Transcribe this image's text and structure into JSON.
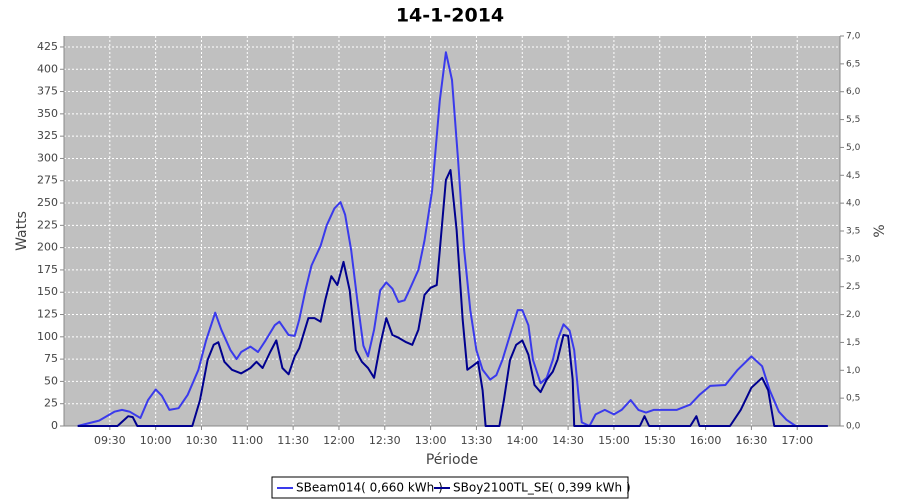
{
  "chart_data": {
    "type": "line",
    "title": "14-1-2014",
    "y_label": "Watts",
    "x_label": "Période",
    "y2_label": "%",
    "xlim": [
      540,
      1048
    ],
    "xticks": [
      {
        "value": 570,
        "label": "09:30"
      },
      {
        "value": 600,
        "label": "10:00"
      },
      {
        "value": 630,
        "label": "10:30"
      },
      {
        "value": 660,
        "label": "11:00"
      },
      {
        "value": 690,
        "label": "11:30"
      },
      {
        "value": 720,
        "label": "12:00"
      },
      {
        "value": 750,
        "label": "12:30"
      },
      {
        "value": 780,
        "label": "13:00"
      },
      {
        "value": 810,
        "label": "13:30"
      },
      {
        "value": 840,
        "label": "14:00"
      },
      {
        "value": 870,
        "label": "14:30"
      },
      {
        "value": 900,
        "label": "15:00"
      },
      {
        "value": 930,
        "label": "15:30"
      },
      {
        "value": 960,
        "label": "16:00"
      },
      {
        "value": 990,
        "label": "16:30"
      },
      {
        "value": 1020,
        "label": "17:00"
      }
    ],
    "ylim": [
      0,
      437.3
    ],
    "yticks": [
      0,
      25,
      50,
      75,
      100,
      125,
      150,
      175,
      200,
      225,
      250,
      275,
      300,
      325,
      350,
      375,
      400,
      425
    ],
    "y2lim": [
      0,
      7
    ],
    "y2ticks": [
      {
        "value": 0,
        "label": "0,0"
      },
      {
        "value": 0.5,
        "label": "0,5"
      },
      {
        "value": 1,
        "label": "1,0"
      },
      {
        "value": 1.5,
        "label": "1,5"
      },
      {
        "value": 2,
        "label": "2,0"
      },
      {
        "value": 2.5,
        "label": "2,5"
      },
      {
        "value": 3,
        "label": "3,0"
      },
      {
        "value": 3.5,
        "label": "3,5"
      },
      {
        "value": 4,
        "label": "4,0"
      },
      {
        "value": 4.5,
        "label": "4,5"
      },
      {
        "value": 5,
        "label": "5,0"
      },
      {
        "value": 5.5,
        "label": "5,5"
      },
      {
        "value": 6,
        "label": "6,0"
      },
      {
        "value": 6.5,
        "label": "6,5"
      },
      {
        "value": 7,
        "label": "7,0"
      }
    ],
    "grid": true,
    "series": [
      {
        "name": "SBeam014( 0,660 kWh )",
        "color": "#3a3aec",
        "x": [
          549,
          563,
          573,
          578,
          583,
          590,
          595,
          600,
          604,
          609,
          615,
          621,
          628,
          633,
          639,
          643,
          649,
          653,
          656,
          662,
          667,
          672,
          678,
          681,
          687,
          691,
          694,
          698,
          702,
          708,
          712,
          717,
          721,
          724,
          728,
          732,
          736,
          739,
          743,
          747,
          751,
          755,
          759,
          763,
          766,
          772,
          776,
          781,
          786,
          790,
          794,
          798,
          802,
          806,
          810,
          814,
          819,
          823,
          827,
          832,
          837,
          840,
          844,
          847,
          852,
          856,
          860,
          863,
          867,
          871,
          874,
          877,
          879,
          884,
          888,
          894,
          900,
          905,
          911,
          916,
          921,
          926,
          933,
          941,
          950,
          956,
          963,
          973,
          981,
          990,
          997,
          1002,
          1008,
          1013,
          1019,
          1040
        ],
        "values": [
          0,
          6,
          16,
          18,
          16,
          9,
          29,
          41,
          34,
          18,
          20,
          35,
          63,
          96,
          127,
          108,
          85,
          75,
          83,
          89,
          83,
          96,
          113,
          117,
          102,
          101,
          119,
          152,
          180,
          202,
          225,
          244,
          251,
          237,
          197,
          141,
          90,
          78,
          108,
          152,
          161,
          154,
          139,
          141,
          152,
          175,
          208,
          264,
          365,
          419,
          388,
          298,
          197,
          130,
          85,
          63,
          52,
          57,
          74,
          102,
          130,
          130,
          113,
          74,
          48,
          54,
          74,
          96,
          114,
          107,
          85,
          31,
          4,
          0,
          13,
          18,
          13,
          18,
          29,
          18,
          15,
          18,
          18,
          18,
          24,
          35,
          45,
          46,
          63,
          78,
          67,
          40,
          16,
          7,
          0,
          0
        ]
      },
      {
        "name": "SBoy2100TL_SE( 0,399 kWh )",
        "color": "#00008f",
        "x": [
          549,
          575,
          582,
          585,
          588,
          624,
          629,
          634,
          638,
          641,
          645,
          650,
          656,
          662,
          666,
          670,
          675,
          679,
          683,
          687,
          691,
          694,
          700,
          704,
          708,
          711,
          715,
          719,
          723,
          727,
          731,
          735,
          739,
          743,
          747,
          751,
          755,
          759,
          764,
          768,
          772,
          776,
          780,
          784,
          786,
          790,
          793,
          797,
          801,
          804,
          808,
          811,
          814,
          816,
          825,
          828,
          832,
          836,
          840,
          844,
          848,
          852,
          856,
          860,
          863,
          867,
          870,
          873,
          874,
          917,
          920,
          923,
          950,
          954,
          956,
          976,
          983,
          990,
          997,
          1001,
          1005,
          1040
        ],
        "values": [
          0,
          0,
          11,
          10,
          0,
          0,
          29,
          74,
          91,
          94,
          72,
          63,
          59,
          65,
          72,
          65,
          83,
          96,
          65,
          58,
          78,
          87,
          121,
          121,
          117,
          141,
          168,
          158,
          184,
          152,
          85,
          72,
          65,
          54,
          91,
          121,
          102,
          99,
          94,
          91,
          108,
          147,
          155,
          158,
          197,
          276,
          287,
          220,
          119,
          63,
          68,
          72,
          40,
          0,
          0,
          29,
          74,
          91,
          96,
          80,
          46,
          38,
          52,
          61,
          74,
          102,
          101,
          52,
          0,
          0,
          11,
          0,
          0,
          11,
          0,
          0,
          18,
          43,
          54,
          40,
          0,
          0
        ]
      }
    ]
  }
}
